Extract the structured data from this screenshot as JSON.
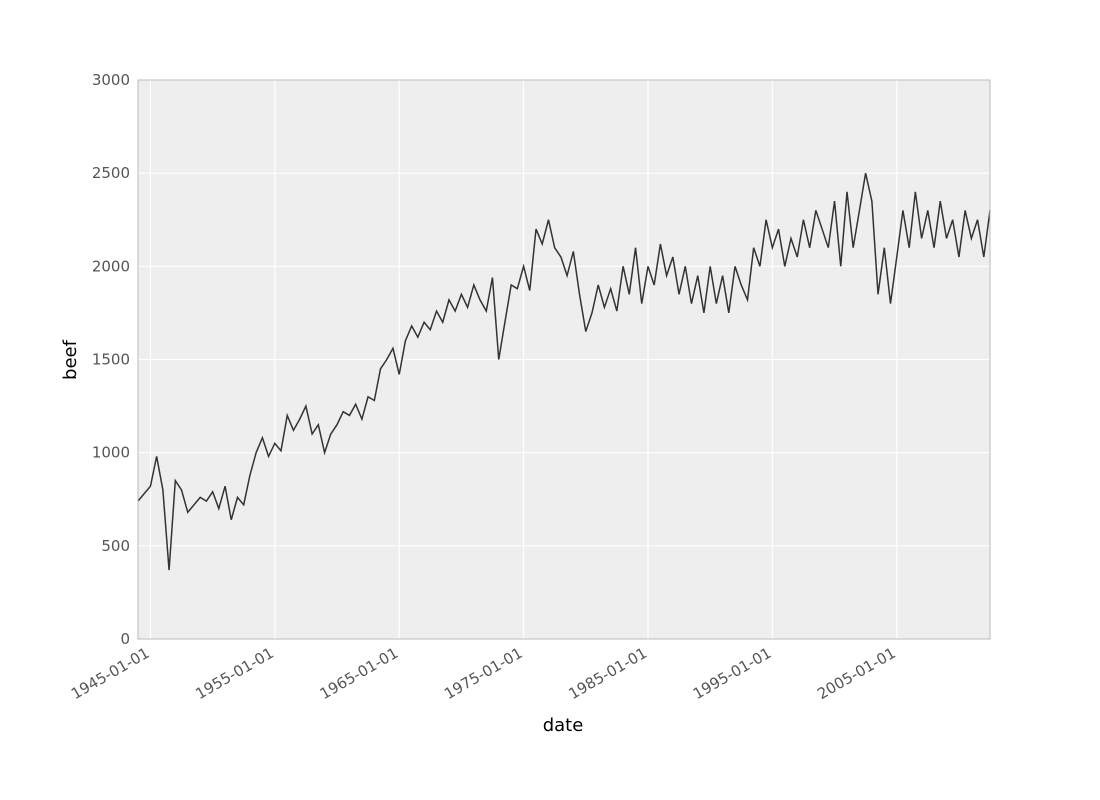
{
  "chart_data": {
    "type": "line",
    "x_label": "date",
    "y_label": "beef",
    "x": [
      "1944-01-01",
      "1944-07-01",
      "1945-01-01",
      "1945-07-01",
      "1946-01-01",
      "1946-07-01",
      "1947-01-01",
      "1947-07-01",
      "1948-01-01",
      "1948-07-01",
      "1949-01-01",
      "1949-07-01",
      "1950-01-01",
      "1950-07-01",
      "1951-01-01",
      "1951-07-01",
      "1952-01-01",
      "1952-07-01",
      "1953-01-01",
      "1953-07-01",
      "1954-01-01",
      "1954-07-01",
      "1955-01-01",
      "1955-07-01",
      "1956-01-01",
      "1956-07-01",
      "1957-01-01",
      "1957-07-01",
      "1958-01-01",
      "1958-07-01",
      "1959-01-01",
      "1959-07-01",
      "1960-01-01",
      "1960-07-01",
      "1961-01-01",
      "1961-07-01",
      "1962-01-01",
      "1962-07-01",
      "1963-01-01",
      "1963-07-01",
      "1964-01-01",
      "1964-07-01",
      "1965-01-01",
      "1965-07-01",
      "1966-01-01",
      "1966-07-01",
      "1967-01-01",
      "1967-07-01",
      "1968-01-01",
      "1968-07-01",
      "1969-01-01",
      "1969-07-01",
      "1970-01-01",
      "1970-07-01",
      "1971-01-01",
      "1971-07-01",
      "1972-01-01",
      "1972-07-01",
      "1973-01-01",
      "1973-07-01",
      "1974-01-01",
      "1974-07-01",
      "1975-01-01",
      "1975-07-01",
      "1976-01-01",
      "1976-07-01",
      "1977-01-01",
      "1977-07-01",
      "1978-01-01",
      "1978-07-01",
      "1979-01-01",
      "1979-07-01",
      "1980-01-01",
      "1980-07-01",
      "1981-01-01",
      "1981-07-01",
      "1982-01-01",
      "1982-07-01",
      "1983-01-01",
      "1983-07-01",
      "1984-01-01",
      "1984-07-01",
      "1985-01-01",
      "1985-07-01",
      "1986-01-01",
      "1986-07-01",
      "1987-01-01",
      "1987-07-01",
      "1988-01-01",
      "1988-07-01",
      "1989-01-01",
      "1989-07-01",
      "1990-01-01",
      "1990-07-01",
      "1991-01-01",
      "1991-07-01",
      "1992-01-01",
      "1992-07-01",
      "1993-01-01",
      "1993-07-01",
      "1994-01-01",
      "1994-07-01",
      "1995-01-01",
      "1995-07-01",
      "1996-01-01",
      "1996-07-01",
      "1997-01-01",
      "1997-07-01",
      "1998-01-01",
      "1998-07-01",
      "1999-01-01",
      "1999-07-01",
      "2000-01-01",
      "2000-07-01",
      "2001-01-01",
      "2001-07-01",
      "2002-01-01",
      "2002-07-01",
      "2003-01-01",
      "2003-07-01",
      "2004-01-01",
      "2004-07-01",
      "2005-01-01",
      "2005-07-01",
      "2006-01-01",
      "2006-07-01",
      "2007-01-01",
      "2007-07-01",
      "2008-01-01",
      "2008-07-01",
      "2009-01-01",
      "2009-07-01",
      "2010-01-01",
      "2010-07-01",
      "2011-01-01",
      "2011-07-01",
      "2012-01-01",
      "2012-07-01"
    ],
    "series": [
      {
        "name": "beef",
        "color": "#333333",
        "values": [
          740,
          780,
          820,
          980,
          800,
          370,
          850,
          800,
          680,
          720,
          760,
          740,
          790,
          700,
          820,
          640,
          760,
          720,
          880,
          1000,
          1080,
          980,
          1050,
          1010,
          1200,
          1120,
          1180,
          1250,
          1100,
          1150,
          1000,
          1100,
          1150,
          1220,
          1200,
          1260,
          1180,
          1300,
          1280,
          1450,
          1500,
          1560,
          1420,
          1600,
          1680,
          1620,
          1700,
          1660,
          1760,
          1700,
          1820,
          1760,
          1850,
          1780,
          1900,
          1820,
          1760,
          1940,
          1500,
          1700,
          1900,
          1880,
          2000,
          1870,
          2200,
          2120,
          2250,
          2100,
          2050,
          1950,
          2080,
          1850,
          1650,
          1750,
          1900,
          1780,
          1880,
          1760,
          2000,
          1850,
          2100,
          1800,
          2000,
          1900,
          2120,
          1950,
          2050,
          1850,
          2000,
          1800,
          1950,
          1750,
          2000,
          1800,
          1950,
          1750,
          2000,
          1900,
          1820,
          2100,
          2000,
          2250,
          2100,
          2200,
          2000,
          2150,
          2050,
          2250,
          2100,
          2300,
          2200,
          2100,
          2350,
          2000,
          2400,
          2100,
          2300,
          2500,
          2350,
          1850,
          2100,
          1800,
          2050,
          2300,
          2100,
          2400,
          2150,
          2300,
          2100,
          2350,
          2150,
          2250,
          2050,
          2300,
          2150,
          2250,
          2050,
          2300
        ]
      }
    ],
    "xlim": [
      "1944-01-01",
      "2012-07-01"
    ],
    "xticks": [
      "1945-01-01",
      "1955-01-01",
      "1965-01-01",
      "1975-01-01",
      "1985-01-01",
      "1995-01-01",
      "2005-01-01"
    ],
    "ylim": [
      0,
      3000
    ],
    "yticks": [
      0,
      500,
      1000,
      1500,
      2000,
      2500,
      3000
    ],
    "grid": true
  }
}
